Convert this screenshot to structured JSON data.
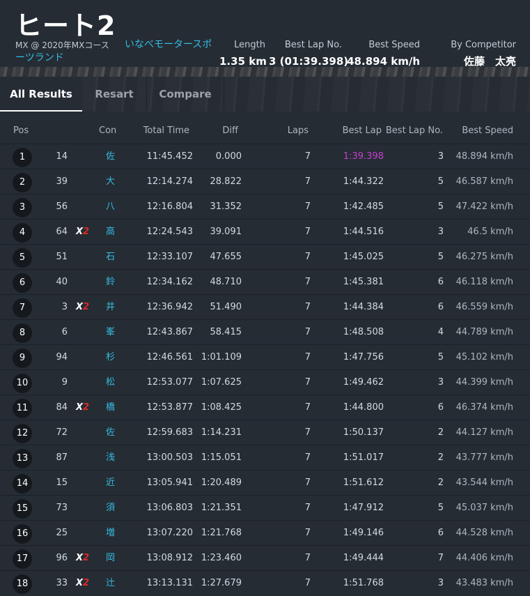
{
  "header": {
    "title": "ヒート2",
    "event_text": "MX @ 2020年MXコース",
    "venue_link": "いなべモータースポーツランド",
    "stats": [
      {
        "label": "Length",
        "value": "1.35 km"
      },
      {
        "label": "Best Lap No.",
        "value": "3 (01:39.398)"
      },
      {
        "label": "Best Speed",
        "value": "48.894 km/h"
      },
      {
        "label": "By Competitor",
        "value": "佐藤　太亮"
      }
    ]
  },
  "tabs": [
    {
      "label": "All Results",
      "active": true
    },
    {
      "label": "Resart",
      "active": false
    },
    {
      "label": "Compare",
      "active": false
    }
  ],
  "columns": {
    "pos": "Pos",
    "competitor": "Con",
    "total_time": "Total Time",
    "diff": "Diff",
    "laps": "Laps",
    "best_lap": "Best Lap",
    "best_lap_no": "Best Lap No.",
    "best_speed": "Best Speed"
  },
  "x2_text": {
    "x": "X",
    "two": "2"
  },
  "rows": [
    {
      "pos": "1",
      "num": "14",
      "x2": false,
      "competitor": "佐",
      "total_time": "11:45.452",
      "diff": "0.000",
      "laps": "7",
      "best_lap": "1:39.398",
      "best_lap_no": "3",
      "best_speed": "48.894 km/h"
    },
    {
      "pos": "2",
      "num": "39",
      "x2": false,
      "competitor": "大",
      "total_time": "12:14.274",
      "diff": "28.822",
      "laps": "7",
      "best_lap": "1:44.322",
      "best_lap_no": "5",
      "best_speed": "46.587 km/h"
    },
    {
      "pos": "3",
      "num": "56",
      "x2": false,
      "competitor": "八",
      "total_time": "12:16.804",
      "diff": "31.352",
      "laps": "7",
      "best_lap": "1:42.485",
      "best_lap_no": "5",
      "best_speed": "47.422 km/h"
    },
    {
      "pos": "4",
      "num": "64",
      "x2": true,
      "competitor": "高",
      "total_time": "12:24.543",
      "diff": "39.091",
      "laps": "7",
      "best_lap": "1:44.516",
      "best_lap_no": "3",
      "best_speed": "46.5 km/h"
    },
    {
      "pos": "5",
      "num": "51",
      "x2": false,
      "competitor": "石",
      "total_time": "12:33.107",
      "diff": "47.655",
      "laps": "7",
      "best_lap": "1:45.025",
      "best_lap_no": "5",
      "best_speed": "46.275 km/h"
    },
    {
      "pos": "6",
      "num": "40",
      "x2": false,
      "competitor": "鈴",
      "total_time": "12:34.162",
      "diff": "48.710",
      "laps": "7",
      "best_lap": "1:45.381",
      "best_lap_no": "6",
      "best_speed": "46.118 km/h"
    },
    {
      "pos": "7",
      "num": "3",
      "x2": true,
      "competitor": "井",
      "total_time": "12:36.942",
      "diff": "51.490",
      "laps": "7",
      "best_lap": "1:44.384",
      "best_lap_no": "6",
      "best_speed": "46.559 km/h"
    },
    {
      "pos": "8",
      "num": "6",
      "x2": false,
      "competitor": "峯",
      "total_time": "12:43.867",
      "diff": "58.415",
      "laps": "7",
      "best_lap": "1:48.508",
      "best_lap_no": "4",
      "best_speed": "44.789 km/h"
    },
    {
      "pos": "9",
      "num": "94",
      "x2": false,
      "competitor": "杉",
      "total_time": "12:46.561",
      "diff": "1:01.109",
      "laps": "7",
      "best_lap": "1:47.756",
      "best_lap_no": "5",
      "best_speed": "45.102 km/h"
    },
    {
      "pos": "10",
      "num": "9",
      "x2": false,
      "competitor": "松",
      "total_time": "12:53.077",
      "diff": "1:07.625",
      "laps": "7",
      "best_lap": "1:49.462",
      "best_lap_no": "3",
      "best_speed": "44.399 km/h"
    },
    {
      "pos": "11",
      "num": "84",
      "x2": true,
      "competitor": "橋",
      "total_time": "12:53.877",
      "diff": "1:08.425",
      "laps": "7",
      "best_lap": "1:44.800",
      "best_lap_no": "6",
      "best_speed": "46.374 km/h"
    },
    {
      "pos": "12",
      "num": "72",
      "x2": false,
      "competitor": "佐",
      "total_time": "12:59.683",
      "diff": "1:14.231",
      "laps": "7",
      "best_lap": "1:50.137",
      "best_lap_no": "2",
      "best_speed": "44.127 km/h"
    },
    {
      "pos": "13",
      "num": "87",
      "x2": false,
      "competitor": "浅",
      "total_time": "13:00.503",
      "diff": "1:15.051",
      "laps": "7",
      "best_lap": "1:51.017",
      "best_lap_no": "2",
      "best_speed": "43.777 km/h"
    },
    {
      "pos": "14",
      "num": "15",
      "x2": false,
      "competitor": "近",
      "total_time": "13:05.941",
      "diff": "1:20.489",
      "laps": "7",
      "best_lap": "1:51.612",
      "best_lap_no": "2",
      "best_speed": "43.544 km/h"
    },
    {
      "pos": "15",
      "num": "73",
      "x2": false,
      "competitor": "須",
      "total_time": "13:06.803",
      "diff": "1:21.351",
      "laps": "7",
      "best_lap": "1:47.912",
      "best_lap_no": "5",
      "best_speed": "45.037 km/h"
    },
    {
      "pos": "16",
      "num": "25",
      "x2": false,
      "competitor": "増",
      "total_time": "13:07.220",
      "diff": "1:21.768",
      "laps": "7",
      "best_lap": "1:49.146",
      "best_lap_no": "6",
      "best_speed": "44.528 km/h"
    },
    {
      "pos": "17",
      "num": "96",
      "x2": true,
      "competitor": "岡",
      "total_time": "13:08.912",
      "diff": "1:23.460",
      "laps": "7",
      "best_lap": "1:49.444",
      "best_lap_no": "7",
      "best_speed": "44.406 km/h"
    },
    {
      "pos": "18",
      "num": "33",
      "x2": true,
      "competitor": "辻",
      "total_time": "13:13.131",
      "diff": "1:27.679",
      "laps": "7",
      "best_lap": "1:51.768",
      "best_lap_no": "3",
      "best_speed": "43.483 km/h"
    }
  ],
  "colors": {
    "background": "#252c34",
    "link": "#35bde2",
    "fastest_lap": "#c93fd2",
    "x2_accent": "#e02828"
  }
}
